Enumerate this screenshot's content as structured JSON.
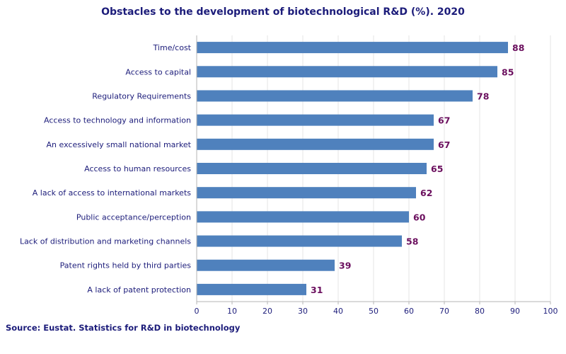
{
  "chart_data": {
    "type": "bar",
    "orientation": "horizontal",
    "title": "Obstacles to the development of biotechnological R&D (%). 2020",
    "categories": [
      "Time/cost",
      "Access to capital",
      "Regulatory Requirements",
      "Access to technology and information",
      "An excessively small national market",
      "Access to human resources",
      "A lack of access to international markets",
      "Public acceptance/perception",
      "Lack of distribution and marketing channels",
      "Patent rights held by third parties",
      "A lack of patent protection"
    ],
    "values": [
      88,
      85,
      78,
      67,
      67,
      65,
      62,
      60,
      58,
      39,
      31
    ],
    "xlim": [
      0,
      100
    ],
    "xticks": [
      0,
      10,
      20,
      30,
      40,
      50,
      60,
      70,
      80,
      90,
      100
    ],
    "grid": "vertical",
    "legend": "none",
    "bar_color": "#4f81bd",
    "value_label_color": "#6b0f5e",
    "text_color": "#1c1c7a"
  },
  "source": "Source: Eustat. Statistics for R&D in biotechnology"
}
